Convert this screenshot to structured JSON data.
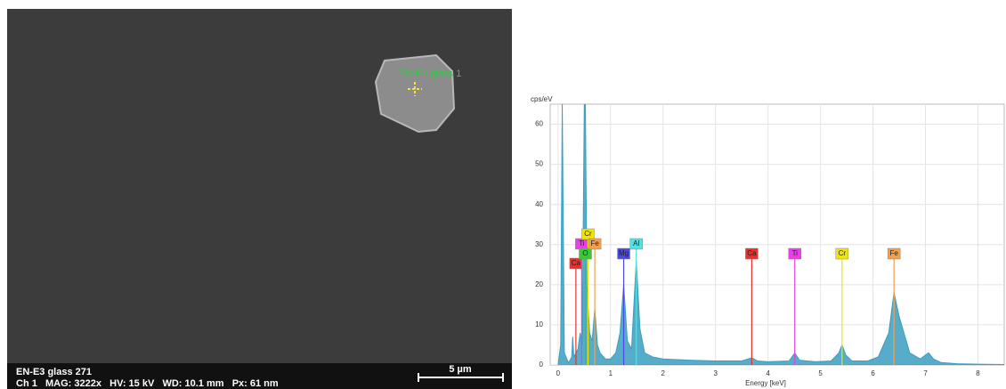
{
  "sem_image": {
    "point_label": "EN-E3 glass 1",
    "sample_label": "EN-E3 glass 271",
    "info_line": "Ch 1   MAG: 3222x   HV: 15 kV   WD: 10.1 mm   Px: 61 nm",
    "scale_bar": "5 µm"
  },
  "chart_data": {
    "type": "area",
    "y_label": "cps/eV",
    "x_label": "Energy [keV]",
    "xlim": [
      -0.15,
      8.5
    ],
    "xticks": [
      0,
      1,
      2,
      3,
      4,
      5,
      6,
      7,
      8
    ],
    "ylim": [
      0,
      65
    ],
    "yticks": [
      0,
      10,
      20,
      30,
      40,
      50,
      60
    ],
    "grid": true,
    "x": [
      0,
      0.05,
      0.08,
      0.12,
      0.2,
      0.26,
      0.28,
      0.3,
      0.34,
      0.38,
      0.42,
      0.46,
      0.5,
      0.52,
      0.55,
      0.6,
      0.65,
      0.7,
      0.75,
      0.8,
      0.9,
      1.0,
      1.1,
      1.18,
      1.25,
      1.32,
      1.4,
      1.49,
      1.56,
      1.65,
      1.8,
      2.0,
      2.5,
      3.0,
      3.5,
      3.69,
      3.8,
      4.0,
      4.4,
      4.51,
      4.6,
      4.9,
      5.2,
      5.35,
      5.41,
      5.48,
      5.6,
      5.9,
      6.1,
      6.3,
      6.4,
      6.5,
      6.7,
      6.9,
      7.0,
      7.06,
      7.15,
      7.3,
      7.6,
      8.0,
      8.5
    ],
    "series": [
      {
        "color": "#3a9fc0",
        "values": [
          0,
          5,
          65,
          3,
          0.5,
          2,
          7,
          2,
          3,
          4,
          8,
          5,
          65,
          65,
          20,
          8,
          6,
          14,
          5,
          3,
          1.5,
          1.5,
          3,
          8,
          20,
          6,
          4,
          26,
          9,
          3,
          2,
          1.5,
          1.2,
          1,
          1,
          1.8,
          1,
          0.8,
          1,
          3,
          1.2,
          0.8,
          1,
          3,
          5,
          2.5,
          1,
          1,
          2,
          8,
          18,
          12,
          3,
          1.5,
          2.5,
          3,
          1.5,
          0.6,
          0.3,
          0.2,
          0.1
        ]
      }
    ],
    "element_markers": [
      {
        "label": "Ca",
        "energy": 0.34,
        "color": "#e8312f"
      },
      {
        "label": "Ti",
        "energy": 0.45,
        "color": "#e83ee8"
      },
      {
        "label": "Cr",
        "energy": 0.57,
        "color": "#f2e600"
      },
      {
        "label": "O",
        "energy": 0.52,
        "color": "#33cc33"
      },
      {
        "label": "Fe",
        "energy": 0.7,
        "color": "#f0a050"
      },
      {
        "label": "Mg",
        "energy": 1.25,
        "color": "#4a4ae0"
      },
      {
        "label": "Al",
        "energy": 1.49,
        "color": "#55e0e0"
      },
      {
        "label": "Ca",
        "energy": 3.69,
        "color": "#e8312f"
      },
      {
        "label": "Ti",
        "energy": 4.51,
        "color": "#e83ee8"
      },
      {
        "label": "Cr",
        "energy": 5.41,
        "color": "#f2e600"
      },
      {
        "label": "Fe",
        "energy": 6.4,
        "color": "#f0a050"
      }
    ]
  }
}
